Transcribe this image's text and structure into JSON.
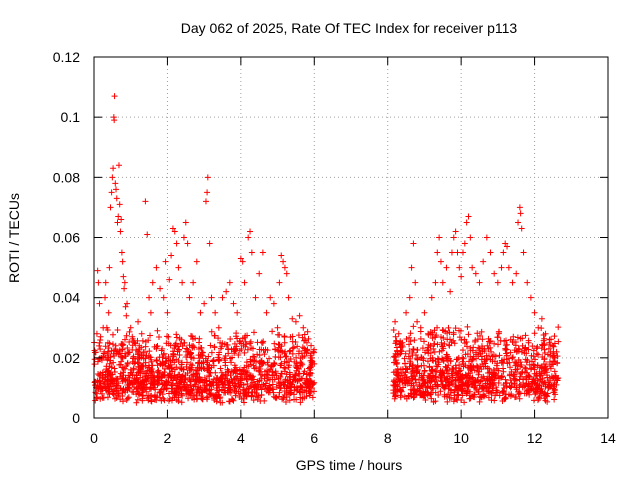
{
  "chart_data": {
    "type": "scatter",
    "title": "Day 062 of 2025, Rate Of TEC Index for receiver p113",
    "xlabel": "GPS time / hours",
    "ylabel": "ROTI / TECUs",
    "xlim": [
      0,
      14
    ],
    "ylim": [
      0,
      0.12
    ],
    "x_ticks": [
      0,
      2,
      4,
      6,
      8,
      10,
      12,
      14
    ],
    "x_tick_labels": [
      "0",
      "2",
      "4",
      "6",
      "8",
      "10",
      "12",
      "14"
    ],
    "y_ticks": [
      0,
      0.02,
      0.04,
      0.06,
      0.08,
      0.1,
      0.12
    ],
    "y_tick_labels": [
      "0",
      "0.02",
      "0.04",
      "0.06",
      "0.08",
      "0.1",
      "0.12"
    ],
    "grid": true,
    "marker": "+",
    "series_color": "#ff0000",
    "observation_segments": [
      {
        "x_range": [
          0.0,
          6.0
        ],
        "typical_range": [
          0.005,
          0.03
        ]
      },
      {
        "x_range": [
          8.15,
          12.65
        ],
        "typical_range": [
          0.005,
          0.032
        ]
      }
    ],
    "series": [
      {
        "name": "ROTI",
        "points": [
          [
            0.05,
            0.012
          ],
          [
            0.08,
            0.028
          ],
          [
            0.1,
            0.049
          ],
          [
            0.12,
            0.045
          ],
          [
            0.15,
            0.038
          ],
          [
            0.18,
            0.027
          ],
          [
            0.2,
            0.02
          ],
          [
            0.22,
            0.01
          ],
          [
            0.25,
            0.03
          ],
          [
            0.28,
            0.022
          ],
          [
            0.3,
            0.04
          ],
          [
            0.32,
            0.045
          ],
          [
            0.35,
            0.03
          ],
          [
            0.38,
            0.025
          ],
          [
            0.4,
            0.035
          ],
          [
            0.42,
            0.05
          ],
          [
            0.45,
            0.07
          ],
          [
            0.48,
            0.075
          ],
          [
            0.5,
            0.08
          ],
          [
            0.52,
            0.083
          ],
          [
            0.54,
            0.1
          ],
          [
            0.55,
            0.099
          ],
          [
            0.56,
            0.107
          ],
          [
            0.58,
            0.078
          ],
          [
            0.6,
            0.076
          ],
          [
            0.62,
            0.073
          ],
          [
            0.64,
            0.065
          ],
          [
            0.66,
            0.067
          ],
          [
            0.68,
            0.084
          ],
          [
            0.7,
            0.071
          ],
          [
            0.72,
            0.062
          ],
          [
            0.74,
            0.066
          ],
          [
            0.76,
            0.055
          ],
          [
            0.78,
            0.052
          ],
          [
            0.8,
            0.047
          ],
          [
            0.82,
            0.043
          ],
          [
            0.84,
            0.045
          ],
          [
            0.86,
            0.037
          ],
          [
            0.88,
            0.034
          ],
          [
            0.9,
            0.038
          ],
          [
            1.0,
            0.03
          ],
          [
            1.1,
            0.025
          ],
          [
            1.2,
            0.032
          ],
          [
            1.3,
            0.028
          ],
          [
            1.4,
            0.072
          ],
          [
            1.45,
            0.061
          ],
          [
            1.5,
            0.04
          ],
          [
            1.55,
            0.035
          ],
          [
            1.6,
            0.045
          ],
          [
            1.7,
            0.05
          ],
          [
            1.8,
            0.043
          ],
          [
            1.9,
            0.04
          ],
          [
            1.95,
            0.052
          ],
          [
            2.0,
            0.035
          ],
          [
            2.05,
            0.046
          ],
          [
            2.1,
            0.054
          ],
          [
            2.15,
            0.063
          ],
          [
            2.2,
            0.062
          ],
          [
            2.25,
            0.058
          ],
          [
            2.3,
            0.05
          ],
          [
            2.4,
            0.045
          ],
          [
            2.45,
            0.06
          ],
          [
            2.5,
            0.065
          ],
          [
            2.55,
            0.058
          ],
          [
            2.6,
            0.04
          ],
          [
            2.7,
            0.045
          ],
          [
            2.8,
            0.052
          ],
          [
            2.9,
            0.035
          ],
          [
            3.0,
            0.038
          ],
          [
            3.05,
            0.072
          ],
          [
            3.08,
            0.075
          ],
          [
            3.1,
            0.08
          ],
          [
            3.15,
            0.058
          ],
          [
            3.2,
            0.04
          ],
          [
            3.3,
            0.035
          ],
          [
            3.4,
            0.03
          ],
          [
            3.5,
            0.04
          ],
          [
            3.6,
            0.042
          ],
          [
            3.7,
            0.045
          ],
          [
            3.8,
            0.038
          ],
          [
            3.9,
            0.035
          ],
          [
            4.0,
            0.053
          ],
          [
            4.05,
            0.052
          ],
          [
            4.1,
            0.045
          ],
          [
            4.2,
            0.06
          ],
          [
            4.25,
            0.062
          ],
          [
            4.3,
            0.055
          ],
          [
            4.4,
            0.04
          ],
          [
            4.5,
            0.048
          ],
          [
            4.6,
            0.055
          ],
          [
            4.7,
            0.035
          ],
          [
            4.8,
            0.04
          ],
          [
            4.9,
            0.038
          ],
          [
            5.0,
            0.03
          ],
          [
            5.05,
            0.045
          ],
          [
            5.1,
            0.054
          ],
          [
            5.15,
            0.052
          ],
          [
            5.2,
            0.05
          ],
          [
            5.25,
            0.048
          ],
          [
            5.3,
            0.04
          ],
          [
            5.4,
            0.033
          ],
          [
            5.5,
            0.032
          ],
          [
            5.6,
            0.034
          ],
          [
            5.7,
            0.03
          ],
          [
            5.8,
            0.025
          ],
          [
            5.9,
            0.02
          ],
          [
            6.0,
            0.018
          ],
          [
            8.2,
            0.032
          ],
          [
            8.3,
            0.028
          ],
          [
            8.4,
            0.025
          ],
          [
            8.5,
            0.035
          ],
          [
            8.6,
            0.04
          ],
          [
            8.65,
            0.05
          ],
          [
            8.7,
            0.058
          ],
          [
            8.75,
            0.045
          ],
          [
            8.8,
            0.032
          ],
          [
            8.9,
            0.03
          ],
          [
            9.0,
            0.035
          ],
          [
            9.1,
            0.028
          ],
          [
            9.2,
            0.04
          ],
          [
            9.3,
            0.045
          ],
          [
            9.35,
            0.055
          ],
          [
            9.4,
            0.06
          ],
          [
            9.45,
            0.052
          ],
          [
            9.5,
            0.045
          ],
          [
            9.6,
            0.05
          ],
          [
            9.7,
            0.042
          ],
          [
            9.75,
            0.055
          ],
          [
            9.8,
            0.06
          ],
          [
            9.85,
            0.062
          ],
          [
            9.9,
            0.055
          ],
          [
            9.95,
            0.05
          ],
          [
            10.0,
            0.047
          ],
          [
            10.05,
            0.055
          ],
          [
            10.1,
            0.058
          ],
          [
            10.15,
            0.065
          ],
          [
            10.2,
            0.067
          ],
          [
            10.25,
            0.06
          ],
          [
            10.3,
            0.05
          ],
          [
            10.4,
            0.048
          ],
          [
            10.5,
            0.045
          ],
          [
            10.6,
            0.052
          ],
          [
            10.7,
            0.06
          ],
          [
            10.8,
            0.055
          ],
          [
            10.9,
            0.048
          ],
          [
            11.0,
            0.045
          ],
          [
            11.1,
            0.05
          ],
          [
            11.15,
            0.055
          ],
          [
            11.2,
            0.058
          ],
          [
            11.25,
            0.057
          ],
          [
            11.3,
            0.05
          ],
          [
            11.4,
            0.045
          ],
          [
            11.5,
            0.048
          ],
          [
            11.55,
            0.065
          ],
          [
            11.6,
            0.07
          ],
          [
            11.62,
            0.068
          ],
          [
            11.65,
            0.063
          ],
          [
            11.7,
            0.055
          ],
          [
            11.8,
            0.045
          ],
          [
            11.9,
            0.04
          ],
          [
            12.0,
            0.035
          ],
          [
            12.1,
            0.03
          ],
          [
            12.2,
            0.033
          ],
          [
            12.3,
            0.028
          ],
          [
            12.4,
            0.025
          ],
          [
            12.5,
            0.024
          ],
          [
            12.6,
            0.022
          ]
        ]
      }
    ]
  }
}
